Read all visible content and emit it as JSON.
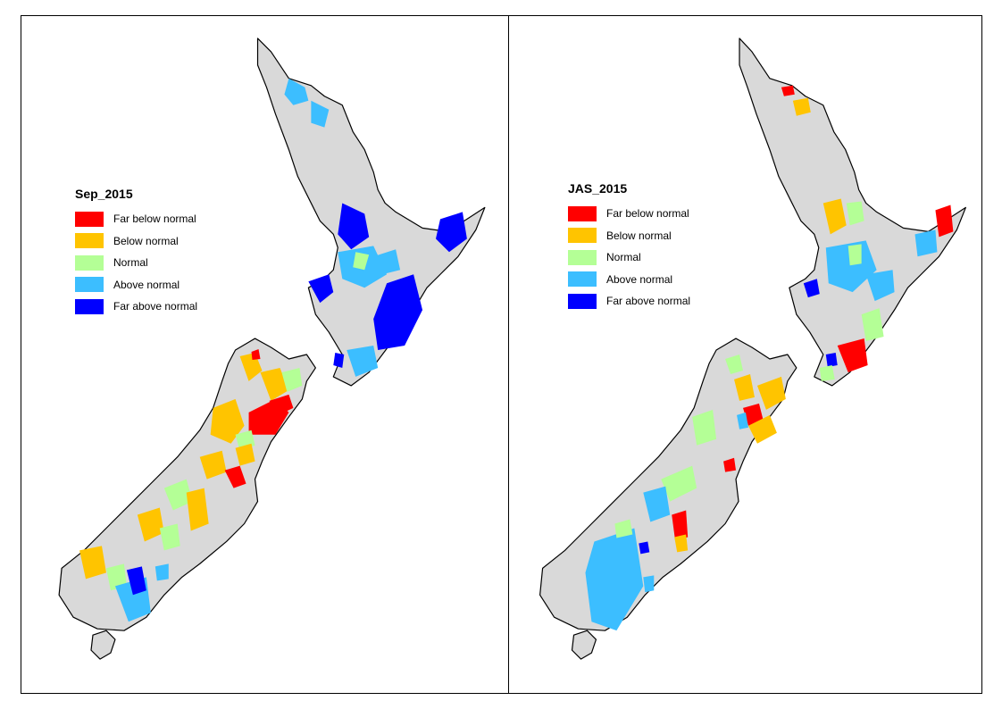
{
  "legend_items": [
    {
      "label": "Far below normal",
      "color": "#ff0000"
    },
    {
      "label": "Below normal",
      "color": "#ffc400"
    },
    {
      "label": "Normal",
      "color": "#b4ff96"
    },
    {
      "label": "Above normal",
      "color": "#3cbeff"
    },
    {
      "label": "Far above normal",
      "color": "#0000ff"
    }
  ],
  "land_color": "#d9d9d9",
  "maps": [
    {
      "title": "Sep_2015"
    },
    {
      "title": "JAS_2015"
    }
  ]
}
